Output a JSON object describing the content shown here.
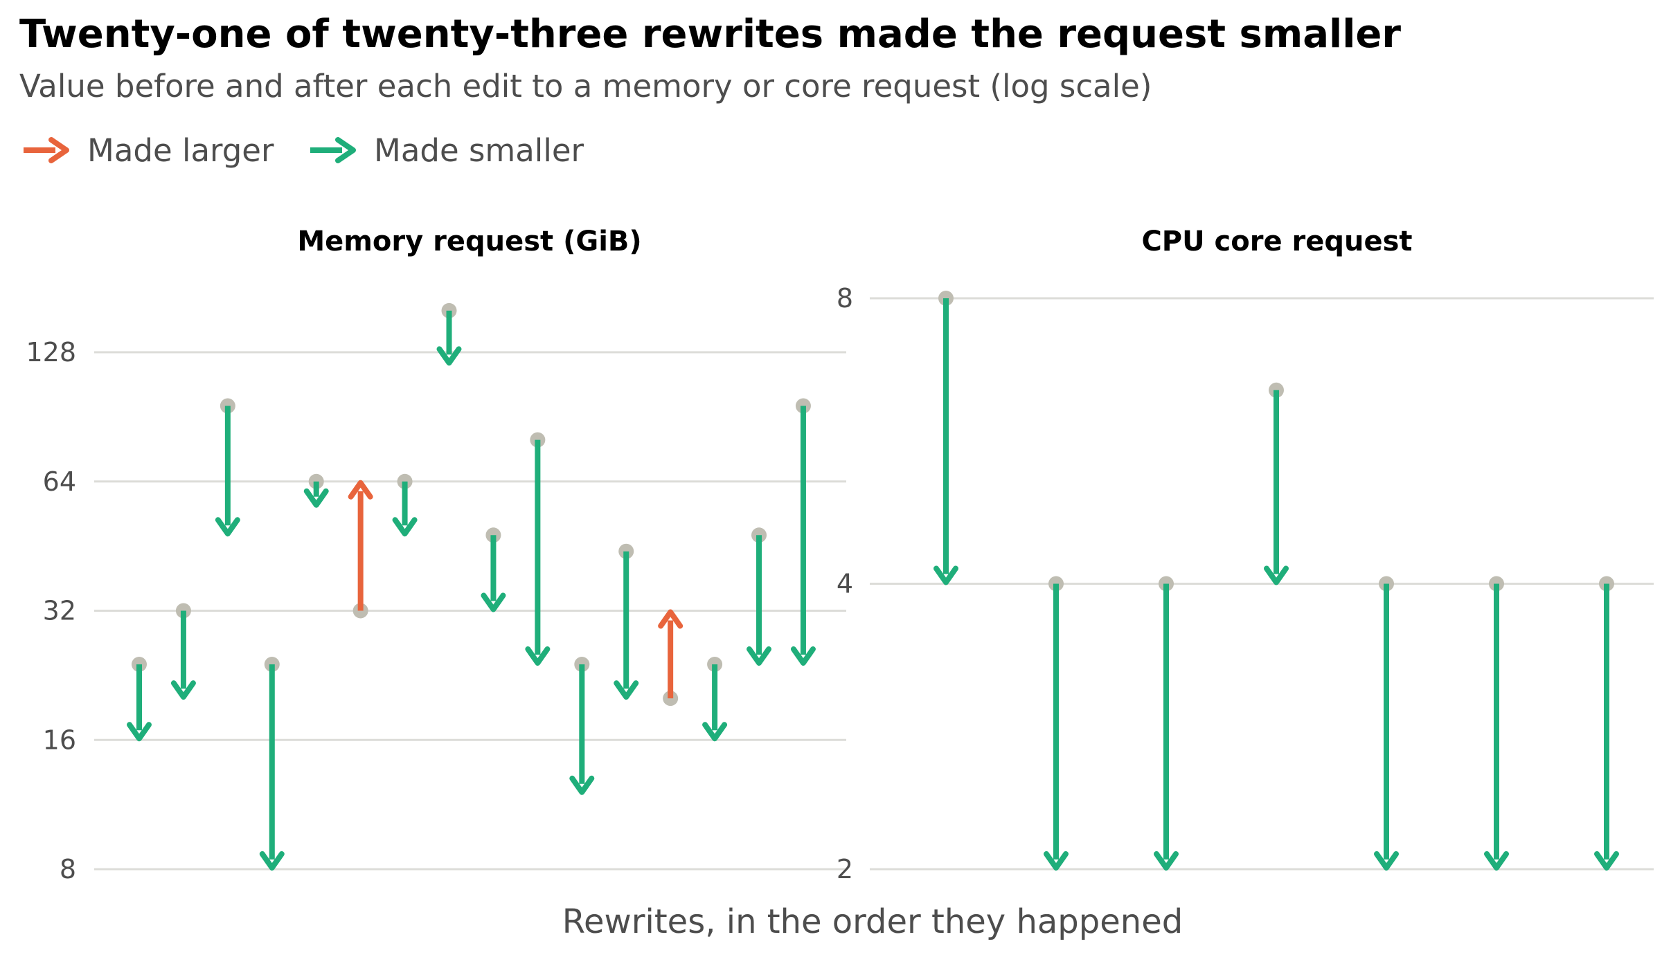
{
  "title": "Twenty-one of twenty-three rewrites made the request smaller",
  "subtitle": "Value before and after each edit to a memory or core request (log scale)",
  "xlabel": "Rewrites, in the order they happened",
  "legend": [
    {
      "label": "Made larger",
      "color": "#e8643c"
    },
    {
      "label": "Made smaller",
      "color": "#1fae7a"
    }
  ],
  "colors": {
    "larger": "#e8643c",
    "smaller": "#1fae7a",
    "before_point": "#bfbdb2",
    "grid": "#dcdcd8"
  },
  "chart_data": [
    {
      "type": "arrow-dumbbell",
      "title": "Memory request (GiB)",
      "scale": "log2",
      "ylim": [
        8,
        170
      ],
      "yticks": [
        8,
        16,
        32,
        64,
        128
      ],
      "ytick_labels": [
        "8",
        "16",
        "32",
        "64",
        "128"
      ],
      "grid": true,
      "points": [
        {
          "before": 24,
          "after": 16
        },
        {
          "before": 32,
          "after": 20
        },
        {
          "before": 96,
          "after": 48
        },
        {
          "before": 24,
          "after": 8
        },
        {
          "before": 64,
          "after": 56
        },
        {
          "before": 32,
          "after": 64
        },
        {
          "before": 64,
          "after": 48
        },
        {
          "before": 160,
          "after": 120
        },
        {
          "before": 48,
          "after": 32
        },
        {
          "before": 80,
          "after": 24
        },
        {
          "before": 24,
          "after": 12
        },
        {
          "before": 44,
          "after": 20
        },
        {
          "before": 20,
          "after": 32
        },
        {
          "before": 24,
          "after": 16
        },
        {
          "before": 48,
          "after": 24
        },
        {
          "before": 96,
          "after": 24
        }
      ]
    },
    {
      "type": "arrow-dumbbell",
      "title": "CPU core request",
      "scale": "log2",
      "ylim": [
        2,
        8
      ],
      "yticks": [
        2,
        4,
        8
      ],
      "ytick_labels": [
        "2",
        "4",
        "8"
      ],
      "grid": true,
      "points": [
        {
          "before": 8,
          "after": 4
        },
        {
          "before": 4,
          "after": 2
        },
        {
          "before": 4,
          "after": 2
        },
        {
          "before": 6.4,
          "after": 4
        },
        {
          "before": 4,
          "after": 2
        },
        {
          "before": 4,
          "after": 2
        },
        {
          "before": 4,
          "after": 2
        }
      ]
    }
  ]
}
